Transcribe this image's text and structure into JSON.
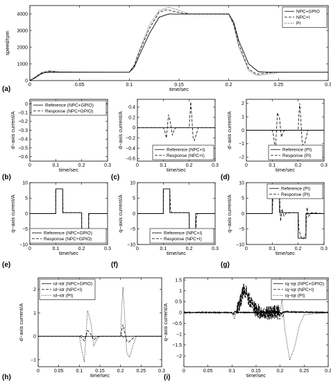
{
  "chart_data": [
    {
      "id": "a",
      "panel_label": "(a)",
      "type": "line",
      "xlabel": "time/sec",
      "ylabel": "speed/rpm",
      "xlim": [
        0,
        0.3
      ],
      "ylim": [
        0,
        4500
      ],
      "xticks": [
        0,
        0.05,
        0.1,
        0.15,
        0.2,
        0.25,
        0.3
      ],
      "xtick_labels": [
        "0",
        "0.05",
        "0.1",
        "0.15",
        "0.2",
        "0.25",
        "0.3"
      ],
      "yticks": [
        0,
        1000,
        2000,
        3000,
        4000
      ],
      "ytick_labels": [
        "0",
        "1000",
        "2000",
        "3000",
        "4000"
      ],
      "legend_position": "top-right",
      "series": [
        {
          "name": "NPC+GPIO",
          "style": "solid",
          "x": [
            0,
            0.005,
            0.01,
            0.015,
            0.02,
            0.1,
            0.105,
            0.11,
            0.12,
            0.13,
            0.14,
            0.145,
            0.15,
            0.2,
            0.205,
            0.21,
            0.22,
            0.23,
            0.24,
            0.3
          ],
          "y": [
            0,
            150,
            350,
            480,
            500,
            500,
            800,
            1500,
            2800,
            3800,
            4000,
            3990,
            3990,
            3990,
            3500,
            2400,
            1000,
            520,
            500,
            500
          ]
        },
        {
          "name": "NPC+I",
          "style": "dashed",
          "x": [
            0,
            0.005,
            0.012,
            0.02,
            0.03,
            0.1,
            0.105,
            0.11,
            0.12,
            0.13,
            0.138,
            0.145,
            0.155,
            0.165,
            0.2,
            0.205,
            0.21,
            0.22,
            0.228,
            0.235,
            0.245,
            0.3
          ],
          "y": [
            0,
            180,
            460,
            550,
            510,
            500,
            900,
            1700,
            3100,
            4100,
            4250,
            4150,
            4020,
            3990,
            3990,
            3400,
            2200,
            700,
            380,
            430,
            500,
            500
          ]
        },
        {
          "name": "PI",
          "style": "dotted",
          "x": [
            0,
            0.005,
            0.012,
            0.02,
            0.03,
            0.1,
            0.105,
            0.11,
            0.12,
            0.13,
            0.14,
            0.148,
            0.16,
            0.2,
            0.205,
            0.21,
            0.22,
            0.228,
            0.236,
            0.25,
            0.3
          ],
          "y": [
            0,
            200,
            500,
            600,
            520,
            500,
            950,
            1800,
            3300,
            4200,
            4400,
            4250,
            4000,
            3990,
            3300,
            2000,
            600,
            300,
            350,
            490,
            500
          ]
        }
      ]
    },
    {
      "id": "b",
      "panel_label": "(b)",
      "type": "line",
      "xlabel": "time/sec",
      "ylabel": "d−axis current/A",
      "xlim": [
        0,
        0.3
      ],
      "ylim": [
        -0.65,
        0.05
      ],
      "xticks": [
        0,
        0.1,
        0.2,
        0.3
      ],
      "xtick_labels": [
        "0",
        "0.1",
        "0.2",
        "0.3"
      ],
      "yticks": [
        0,
        -0.1,
        -0.2,
        -0.3,
        -0.4,
        -0.5,
        -0.6
      ],
      "ytick_labels": [
        "0",
        "−0.1",
        "−0.2",
        "−0.3",
        "−0.4",
        "−0.5",
        "−0.6"
      ],
      "legend_position": "top-right",
      "series": [
        {
          "name": "Reference (NPC+GPIO)",
          "style": "solid",
          "x": [
            0,
            0.3
          ],
          "y": [
            0,
            0
          ]
        },
        {
          "name": "Response (NPC+GPIO)",
          "style": "dashed",
          "x": [
            0,
            0.098,
            0.1,
            0.102,
            0.104,
            0.198,
            0.199,
            0.2,
            0.201,
            0.202,
            0.203,
            0.3
          ],
          "y": [
            0,
            0,
            0.01,
            -0.01,
            0,
            0,
            0.03,
            -0.04,
            0.02,
            -0.02,
            0,
            0
          ]
        }
      ]
    },
    {
      "id": "c",
      "panel_label": "(c)",
      "type": "line",
      "xlabel": "time/sec",
      "ylabel": "d−axis current/A",
      "xlim": [
        0,
        0.3
      ],
      "ylim": [
        -0.65,
        0.55
      ],
      "xticks": [
        0,
        0.1,
        0.2,
        0.3
      ],
      "xtick_labels": [
        "0",
        "0.1",
        "0.2",
        "0.3"
      ],
      "yticks": [
        -0.6,
        -0.4,
        -0.2,
        0,
        0.2,
        0.4
      ],
      "ytick_labels": [
        "−0.6",
        "−0.4",
        "−0.2",
        "0",
        "0.2",
        "0.4"
      ],
      "legend_position": "bottom-right",
      "series": [
        {
          "name": "Reference (NPC+I)",
          "style": "solid",
          "x": [
            0,
            0.3
          ],
          "y": [
            0,
            0
          ]
        },
        {
          "name": "Response (NPC+I)",
          "style": "dashed",
          "x": [
            0,
            0.1,
            0.105,
            0.112,
            0.12,
            0.127,
            0.135,
            0.143,
            0.15,
            0.2,
            0.203,
            0.206,
            0.21,
            0.215,
            0.22,
            0.228,
            0.235,
            0.3
          ],
          "y": [
            0,
            0,
            -0.05,
            -0.2,
            0.25,
            0.12,
            -0.15,
            -0.03,
            0,
            0,
            0.25,
            0.5,
            0.2,
            -0.2,
            -0.25,
            -0.12,
            0,
            0
          ]
        }
      ]
    },
    {
      "id": "d",
      "panel_label": "(d)",
      "type": "line",
      "xlabel": "time/sec",
      "ylabel": "d−axis current/A",
      "xlim": [
        0,
        0.3
      ],
      "ylim": [
        -2.3,
        2.3
      ],
      "xticks": [
        0,
        0.1,
        0.2,
        0.3
      ],
      "xtick_labels": [
        "0",
        "0.1",
        "0.2",
        "0.3"
      ],
      "yticks": [
        -2,
        -1,
        0,
        1,
        2
      ],
      "ytick_labels": [
        "−2",
        "−1",
        "0",
        "1",
        "2"
      ],
      "legend_position": "bottom-right",
      "series": [
        {
          "name": "Reference (PI)",
          "style": "solid",
          "x": [
            0,
            0.3
          ],
          "y": [
            0,
            0
          ]
        },
        {
          "name": "Response (PI)",
          "style": "dashed",
          "x": [
            0,
            0.1,
            0.105,
            0.112,
            0.12,
            0.128,
            0.135,
            0.143,
            0.15,
            0.2,
            0.203,
            0.206,
            0.21,
            0.215,
            0.222,
            0.23,
            0.238,
            0.3
          ],
          "y": [
            0,
            0,
            -0.4,
            -1.6,
            1.3,
            0.9,
            -0.5,
            -0.1,
            0,
            0,
            1.2,
            2.0,
            0.9,
            -0.8,
            -1.3,
            -0.6,
            0,
            0
          ]
        }
      ]
    },
    {
      "id": "e",
      "panel_label": "(e)",
      "type": "line",
      "xlabel": "time/sec",
      "ylabel": "q−axis current/A",
      "xlim": [
        0,
        0.3
      ],
      "ylim": [
        -10,
        10
      ],
      "xticks": [
        0,
        0.1,
        0.2,
        0.3
      ],
      "xtick_labels": [
        "0",
        "0.1",
        "0.2",
        "0.3"
      ],
      "yticks": [
        -10,
        -5,
        0,
        5,
        10
      ],
      "ytick_labels": [
        "−10",
        "−5",
        "0",
        "5",
        "10"
      ],
      "legend_position": "bottom-right",
      "series": [
        {
          "name": "Reference (NPC+GPIO)",
          "style": "solid",
          "x": [
            0,
            0.1,
            0.1,
            0.127,
            0.127,
            0.2,
            0.2,
            0.227,
            0.227,
            0.3
          ],
          "y": [
            0,
            0,
            8,
            8,
            0.3,
            0.3,
            -8,
            -8,
            0,
            0
          ]
        },
        {
          "name": "Response (NPC+GPIO)",
          "style": "dashed",
          "x": [
            0,
            0.1,
            0.101,
            0.127,
            0.128,
            0.2,
            0.201,
            0.227,
            0.228,
            0.3
          ],
          "y": [
            0,
            0,
            8,
            8,
            0.3,
            0.3,
            -8,
            -8,
            0,
            0
          ]
        }
      ]
    },
    {
      "id": "f",
      "panel_label": "(f)",
      "type": "line",
      "xlabel": "time/sec",
      "ylabel": "q−axis current/A",
      "xlim": [
        0,
        0.3
      ],
      "ylim": [
        -10,
        10
      ],
      "xticks": [
        0,
        0.1,
        0.2,
        0.3
      ],
      "xtick_labels": [
        "0",
        "0.1",
        "0.2",
        "0.3"
      ],
      "yticks": [
        -10,
        -5,
        0,
        5,
        10
      ],
      "ytick_labels": [
        "−10",
        "−5",
        "0",
        "5",
        "10"
      ],
      "legend_position": "bottom-right",
      "series": [
        {
          "name": "Reference (NPC+I)",
          "style": "solid",
          "x": [
            0,
            0.1,
            0.1,
            0.125,
            0.125,
            0.2,
            0.2,
            0.225,
            0.225,
            0.3
          ],
          "y": [
            0,
            0,
            8,
            8,
            0.3,
            0.3,
            -8,
            -8,
            0,
            0
          ]
        },
        {
          "name": "Response (NPC+I)",
          "style": "dashed",
          "x": [
            0,
            0.1,
            0.101,
            0.125,
            0.128,
            0.132,
            0.2,
            0.201,
            0.225,
            0.228,
            0.232,
            0.3
          ],
          "y": [
            0,
            0,
            8,
            8,
            1.2,
            0.3,
            0.3,
            -8,
            -8,
            -1,
            0,
            0
          ]
        }
      ]
    },
    {
      "id": "g",
      "panel_label": "(g)",
      "type": "line",
      "xlabel": "time/sec",
      "ylabel": "q−axis current/A",
      "xlim": [
        0,
        0.3
      ],
      "ylim": [
        -10,
        10
      ],
      "xticks": [
        0,
        0.1,
        0.2,
        0.3
      ],
      "xtick_labels": [
        "0",
        "0.1",
        "0.2",
        "0.3"
      ],
      "yticks": [
        -10,
        -5,
        0,
        5,
        10
      ],
      "ytick_labels": [
        "−10",
        "−5",
        "0",
        "5",
        "10"
      ],
      "legend_position": "top-right",
      "series": [
        {
          "name": "Reference (PI)",
          "style": "solid",
          "x": [
            0,
            0.1,
            0.1,
            0.128,
            0.128,
            0.2,
            0.2,
            0.23,
            0.23,
            0.3
          ],
          "y": [
            0,
            0,
            8,
            8,
            0.3,
            0.3,
            -8,
            -8,
            0,
            0
          ]
        },
        {
          "name": "Response (PI)",
          "style": "dashed",
          "x": [
            0,
            0.1,
            0.103,
            0.108,
            0.118,
            0.128,
            0.132,
            0.138,
            0.145,
            0.155,
            0.2,
            0.203,
            0.21,
            0.22,
            0.23,
            0.234,
            0.24,
            0.25,
            0.3
          ],
          "y": [
            0,
            0,
            6,
            7.5,
            8.2,
            7.5,
            -2.5,
            1.5,
            -0.8,
            0.2,
            0.3,
            -5,
            -7.5,
            -8.2,
            -6.5,
            2,
            -1,
            0.3,
            0
          ]
        }
      ]
    },
    {
      "id": "h",
      "panel_label": "(h)",
      "type": "line",
      "xlabel": "time/sec",
      "ylabel": "d−axis current/A",
      "xlim": [
        0,
        0.3
      ],
      "ylim": [
        -1.3,
        2.5
      ],
      "xticks": [
        0,
        0.05,
        0.1,
        0.15,
        0.2,
        0.25,
        0.3
      ],
      "xtick_labels": [
        "0",
        "0.05",
        "0.1",
        "0.15",
        "0.2",
        "0.25",
        "0.3"
      ],
      "yticks": [
        -1,
        0,
        1,
        2
      ],
      "ytick_labels": [
        "−1",
        "0",
        "1",
        "2"
      ],
      "legend_position": "top-left",
      "series": [
        {
          "name": "id−idr (NPC+GPIO)",
          "style": "solid",
          "x": [
            0,
            0.1,
            0.105,
            0.11,
            0.115,
            0.2,
            0.203,
            0.206,
            0.21,
            0.3
          ],
          "y": [
            0,
            0,
            0.02,
            -0.02,
            0,
            0,
            0.03,
            -0.03,
            0,
            0
          ]
        },
        {
          "name": "id−idr (NPC+I)",
          "style": "dashed",
          "x": [
            0,
            0.1,
            0.105,
            0.112,
            0.12,
            0.127,
            0.135,
            0.143,
            0.15,
            0.2,
            0.203,
            0.206,
            0.21,
            0.215,
            0.22,
            0.228,
            0.235,
            0.3
          ],
          "y": [
            0,
            0,
            -0.05,
            -0.2,
            0.25,
            0.12,
            -0.15,
            -0.03,
            0,
            0,
            0.25,
            0.5,
            0.2,
            -0.2,
            -0.25,
            -0.12,
            0,
            0
          ]
        },
        {
          "name": "id−idr (PI)",
          "style": "dotted",
          "x": [
            0,
            0.1,
            0.105,
            0.112,
            0.12,
            0.128,
            0.135,
            0.143,
            0.15,
            0.2,
            0.203,
            0.206,
            0.21,
            0.215,
            0.222,
            0.23,
            0.238,
            0.3
          ],
          "y": [
            0,
            0,
            -0.5,
            -1.1,
            1.1,
            0.6,
            -0.4,
            -0.1,
            0,
            0,
            1.2,
            2.1,
            0.9,
            -0.7,
            -0.9,
            -0.4,
            0,
            0
          ]
        }
      ]
    },
    {
      "id": "i",
      "panel_label": "(i)",
      "type": "line",
      "xlabel": "time/sec",
      "ylabel": "q−axis current/A",
      "xlim": [
        0,
        0.3
      ],
      "ylim": [
        -2.5,
        1.6
      ],
      "xticks": [
        0,
        0.05,
        0.1,
        0.15,
        0.2,
        0.25,
        0.3
      ],
      "xtick_labels": [
        "0",
        "0.05",
        "0.1",
        "0.15",
        "0.2",
        "0.25",
        "0.3"
      ],
      "yticks": [
        -2,
        -1.5,
        -1,
        -0.5,
        0,
        0.5,
        1,
        1.5
      ],
      "ytick_labels": [
        "−2",
        "−1.5",
        "−1",
        "−0.5",
        "0",
        "0.5",
        "1",
        "1.5"
      ],
      "legend_position": "top-right",
      "series": [
        {
          "name": "iq−iqr (NPC+GPIO)",
          "style": "solid",
          "noise_amp": 0.02,
          "x": [
            0,
            0.1,
            0.102,
            0.106,
            0.11,
            0.2,
            0.203,
            0.208,
            0.3
          ],
          "y": [
            0,
            0,
            -0.08,
            0.05,
            0,
            0,
            -0.05,
            0.03,
            0
          ]
        },
        {
          "name": "iq−iqr (NPC+I)",
          "style": "dashed",
          "noise_amp": 0.35,
          "noise_range": [
            0.11,
            0.2
          ],
          "x": [
            0,
            0.1,
            0.105,
            0.115,
            0.125,
            0.135,
            0.145,
            0.16,
            0.2,
            0.205,
            0.212,
            0.22,
            0.3
          ],
          "y": [
            0,
            0,
            -0.1,
            0.3,
            1.1,
            0.6,
            0.2,
            0,
            0,
            -0.2,
            0.1,
            0,
            0
          ]
        },
        {
          "name": "iq−iqr (PI)",
          "style": "dotted",
          "x": [
            0,
            0.03,
            0.06,
            0.1,
            0.105,
            0.113,
            0.122,
            0.13,
            0.14,
            0.15,
            0.165,
            0.2,
            0.204,
            0.21,
            0.22,
            0.23,
            0.24,
            0.25,
            0.3
          ],
          "y": [
            0,
            0,
            0,
            0,
            -0.3,
            0.3,
            1.1,
            0.9,
            0.3,
            -0.1,
            0,
            0,
            0.6,
            -0.8,
            -2.2,
            -1.6,
            -0.6,
            -0.1,
            0
          ]
        }
      ]
    }
  ]
}
